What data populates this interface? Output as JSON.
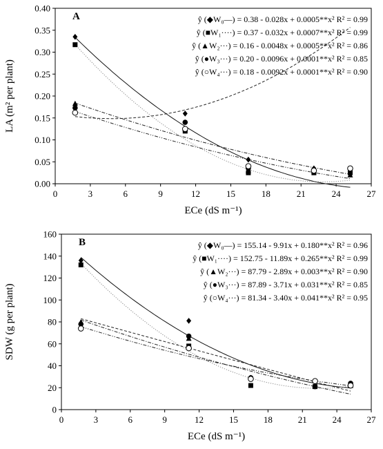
{
  "chart_data": [
    {
      "panel": "A",
      "type": "scatter",
      "xlabel": "ECe (dS m⁻¹)",
      "ylabel": "LA (m² per plant)",
      "xlim": [
        0,
        27
      ],
      "ylim": [
        0,
        0.4
      ],
      "xticks": [
        "0",
        "3",
        "6",
        "9",
        "12",
        "15",
        "18",
        "21",
        "24",
        "27"
      ],
      "yticks": [
        "0.00",
        "0.05",
        "0.10",
        "0.15",
        "0.20",
        "0.25",
        "0.30",
        "0.35",
        "0.40"
      ],
      "x": [
        1.7,
        11.1,
        16.5,
        22.1,
        25.2
      ],
      "series": [
        {
          "name": "W0",
          "marker": "diamond",
          "line": "solid",
          "values": [
            0.335,
            0.16,
            0.055,
            0.035,
            0.025
          ],
          "equation": "ŷ (◆W₀—) = 0.38 - 0.028x + 0.0005**x² R² = 0.99"
        },
        {
          "name": "W1",
          "marker": "square",
          "line": "dotted",
          "values": [
            0.317,
            0.12,
            0.025,
            0.025,
            0.025
          ],
          "equation": "ŷ (■W₁····) = 0.37 - 0.032x + 0.0007**x² R² = 0.99"
        },
        {
          "name": "W2",
          "marker": "triangle",
          "line": "dashed",
          "values": [
            0.183,
            0.125,
            0.03,
            0.03,
            0.02
          ],
          "equation": "ŷ (▲W₂···) = 0.16 - 0.0048x + 0.0005**x² R² = 0.86"
        },
        {
          "name": "W3",
          "marker": "circle-filled",
          "line": "dash-dot",
          "values": [
            0.173,
            0.14,
            0.035,
            0.03,
            0.035
          ],
          "equation": "ŷ (●W₃···) = 0.20 - 0.0096x + 0.0001**x² R² = 0.85"
        },
        {
          "name": "W4",
          "marker": "circle-open",
          "line": "dash-dot-dot",
          "values": [
            0.162,
            0.125,
            0.04,
            0.03,
            0.035
          ],
          "equation": "ŷ (○W₄···) = 0.18 - 0.0092x + 0.0001**x² R² = 0.90"
        }
      ]
    },
    {
      "panel": "B",
      "type": "scatter",
      "xlabel": "ECe (dS m⁻¹)",
      "ylabel": "SDW (g per plant)",
      "xlim": [
        0,
        27
      ],
      "ylim": [
        0,
        160
      ],
      "xticks": [
        "0",
        "3",
        "6",
        "9",
        "12",
        "15",
        "18",
        "21",
        "24",
        "27"
      ],
      "yticks": [
        "0",
        "20",
        "40",
        "60",
        "80",
        "100",
        "120",
        "140",
        "160"
      ],
      "x": [
        1.7,
        11.1,
        16.5,
        22.1,
        25.2
      ],
      "series": [
        {
          "name": "W0",
          "marker": "diamond",
          "line": "solid",
          "values": [
            136,
            81,
            29,
            22,
            22
          ],
          "equation": "ŷ (◆W₀—) = 155.14 - 9.91x + 0.180**x² R² = 0.96"
        },
        {
          "name": "W1",
          "marker": "square",
          "line": "dotted",
          "values": [
            132,
            58,
            22,
            21,
            23
          ],
          "equation": "ŷ (■W₁····) = 152.75 - 11.89x + 0.265**x² R² = 0.99"
        },
        {
          "name": "W2",
          "marker": "triangle",
          "line": "dashed",
          "values": [
            80,
            65,
            29,
            22,
            22
          ],
          "equation": "ŷ (▲W₂···) = 87.79 - 2.89x + 0.003**x² R² = 0.90"
        },
        {
          "name": "W3",
          "marker": "circle-filled",
          "line": "dash-dot",
          "values": [
            78,
            67,
            29,
            21,
            24
          ],
          "equation": "ŷ (●W₃···) = 87.89 - 3.71x + 0.031**x² R² = 0.85"
        },
        {
          "name": "W4",
          "marker": "circle-open",
          "line": "dash-dot-dot",
          "values": [
            74,
            56,
            28,
            26,
            22
          ],
          "equation": "ŷ (○W₄···) = 81.34 - 3.40x + 0.041**x² R² = 0.95"
        }
      ]
    }
  ]
}
